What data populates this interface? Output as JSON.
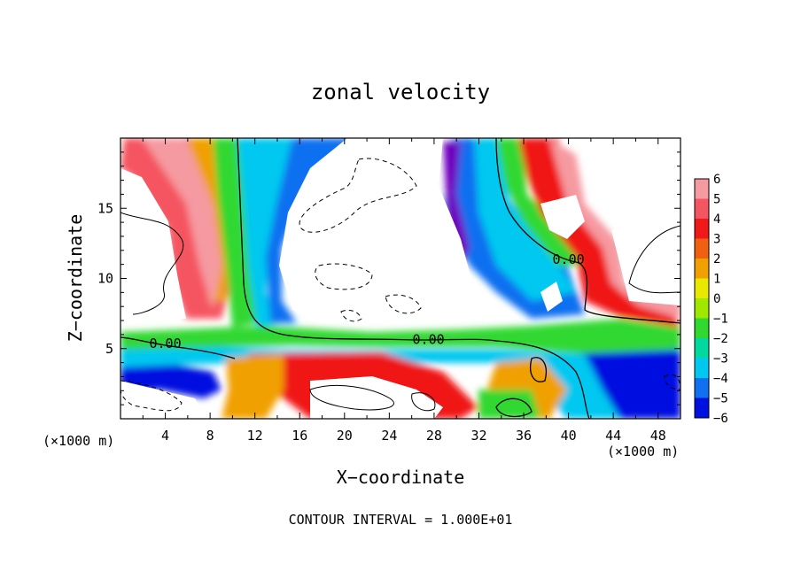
{
  "chart_data": {
    "type": "heatmap",
    "title": "zonal velocity",
    "xlabel": "X−coordinate",
    "ylabel": "Z−coordinate",
    "x_unit_left": "(×1000 m)",
    "x_unit_right": "(×1000 m)",
    "footer": "CONTOUR INTERVAL = 1.000E+01",
    "xlim": [
      0,
      50
    ],
    "ylim": [
      0,
      20
    ],
    "x_ticks": [
      4,
      8,
      12,
      16,
      20,
      24,
      28,
      32,
      36,
      40,
      44,
      48
    ],
    "y_ticks": [
      5,
      10,
      15
    ],
    "colorbar": {
      "levels": [
        6,
        5,
        4,
        3,
        2,
        1,
        0,
        -1,
        -2,
        -3,
        -4,
        -5,
        -6
      ],
      "colors": [
        "#f59aa0",
        "#f55560",
        "#f01818",
        "#f06010",
        "#f0a000",
        "#e8e800",
        "#a0e800",
        "#30d830",
        "#00d8a0",
        "#00c8f0",
        "#1070f0",
        "#0010e0",
        "#7000c0"
      ]
    },
    "contour_labels": [
      {
        "text": "0.00",
        "x": 4,
        "z": 5.1
      },
      {
        "text": "0.00",
        "x": 27.5,
        "z": 5.4
      },
      {
        "text": "0.00",
        "x": 40,
        "z": 11.1
      }
    ]
  }
}
